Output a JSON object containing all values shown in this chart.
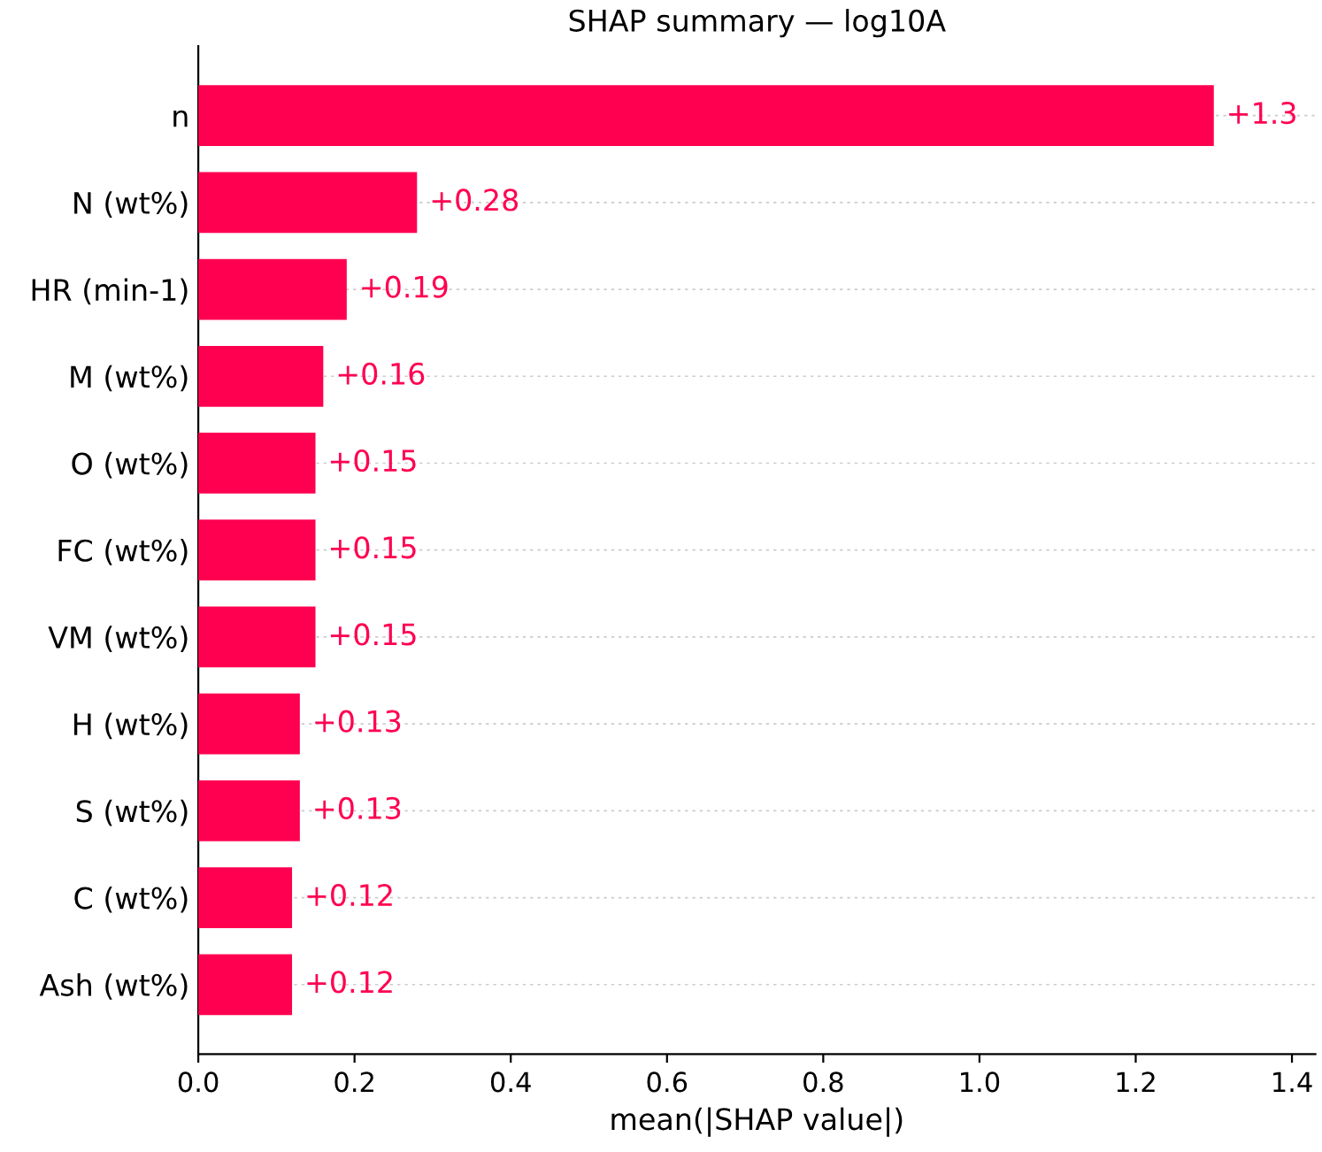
{
  "chart_data": {
    "type": "bar",
    "orientation": "horizontal",
    "title": "SHAP summary — log10A",
    "xlabel": "mean(|SHAP value|)",
    "categories": [
      "n",
      "N (wt%)",
      "HR (min-1)",
      "M (wt%)",
      "O (wt%)",
      "FC (wt%)",
      "VM (wt%)",
      "H (wt%)",
      "S (wt%)",
      "C (wt%)",
      "Ash (wt%)"
    ],
    "values": [
      1.3,
      0.28,
      0.19,
      0.16,
      0.15,
      0.15,
      0.15,
      0.13,
      0.13,
      0.12,
      0.12
    ],
    "value_labels": [
      "+1.3",
      "+0.28",
      "+0.19",
      "+0.16",
      "+0.15",
      "+0.15",
      "+0.15",
      "+0.13",
      "+0.13",
      "+0.12",
      "+0.12"
    ],
    "color": "#ff0051",
    "xlim": [
      0,
      1.43
    ],
    "xticks": [
      "0.0",
      "0.2",
      "0.4",
      "0.6",
      "0.8",
      "1.0",
      "1.2",
      "1.4"
    ],
    "grid": "y"
  }
}
